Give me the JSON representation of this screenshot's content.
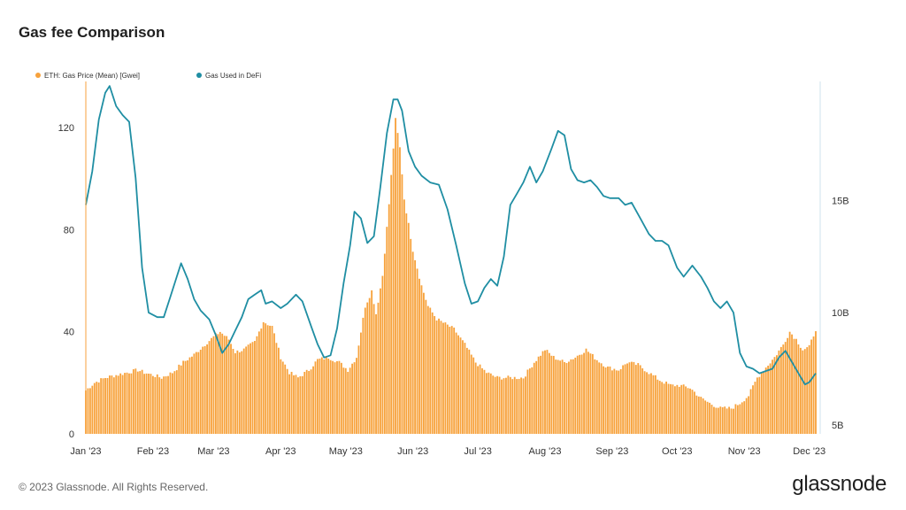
{
  "page": {
    "title": "Gas fee Comparison",
    "copyright": "© 2023 Glassnode. All Rights Reserved.",
    "brand": "glassnode"
  },
  "chart_data": {
    "type": "bar+line",
    "title": "Gas fee Comparison",
    "legend_placement": "top-left",
    "grid": false,
    "x_ticks": [
      "Jan '23",
      "Feb '23",
      "Mar '23",
      "Apr '23",
      "May '23",
      "Jun '23",
      "Jul '23",
      "Aug '23",
      "Sep '23",
      "Oct '23",
      "Nov '23",
      "Dec '23"
    ],
    "x_range": [
      "2023-01-01",
      "2023-12-04"
    ],
    "y_left": {
      "ticks": [
        "0",
        "40",
        "80",
        "120"
      ],
      "range": [
        0,
        138
      ]
    },
    "y_right": {
      "ticks": [
        "5B",
        "10B",
        "15B"
      ],
      "range": [
        4.6,
        20.3
      ],
      "unit": "B"
    },
    "series": [
      {
        "name": "ETH: Gas Price (Mean) [Gwei]",
        "type": "bar",
        "axis": "left",
        "color": "#f7a23c",
        "points": [
          [
            "2023-01-01",
            17
          ],
          [
            "2023-01-05",
            20
          ],
          [
            "2023-01-10",
            22
          ],
          [
            "2023-01-15",
            23
          ],
          [
            "2023-01-20",
            24
          ],
          [
            "2023-01-25",
            25
          ],
          [
            "2023-01-28",
            24
          ],
          [
            "2023-02-01",
            23
          ],
          [
            "2023-02-05",
            22
          ],
          [
            "2023-02-10",
            24
          ],
          [
            "2023-02-15",
            28
          ],
          [
            "2023-02-20",
            31
          ],
          [
            "2023-02-25",
            35
          ],
          [
            "2023-03-01",
            38
          ],
          [
            "2023-03-04",
            40
          ],
          [
            "2023-03-08",
            37
          ],
          [
            "2023-03-11",
            32
          ],
          [
            "2023-03-15",
            33
          ],
          [
            "2023-03-20",
            36
          ],
          [
            "2023-03-24",
            44
          ],
          [
            "2023-03-28",
            42
          ],
          [
            "2023-04-01",
            30
          ],
          [
            "2023-04-05",
            24
          ],
          [
            "2023-04-09",
            22
          ],
          [
            "2023-04-14",
            25
          ],
          [
            "2023-04-18",
            29
          ],
          [
            "2023-04-23",
            30
          ],
          [
            "2023-04-28",
            28
          ],
          [
            "2023-05-02",
            25
          ],
          [
            "2023-05-06",
            30
          ],
          [
            "2023-05-10",
            50
          ],
          [
            "2023-05-13",
            56
          ],
          [
            "2023-05-15",
            47
          ],
          [
            "2023-05-18",
            62
          ],
          [
            "2023-05-21",
            90
          ],
          [
            "2023-05-24",
            123
          ],
          [
            "2023-05-26",
            112
          ],
          [
            "2023-05-28",
            92
          ],
          [
            "2023-06-01",
            72
          ],
          [
            "2023-06-05",
            58
          ],
          [
            "2023-06-08",
            50
          ],
          [
            "2023-06-12",
            45
          ],
          [
            "2023-06-16",
            43
          ],
          [
            "2023-06-20",
            41
          ],
          [
            "2023-06-25",
            35
          ],
          [
            "2023-06-30",
            28
          ],
          [
            "2023-07-05",
            24
          ],
          [
            "2023-07-10",
            22
          ],
          [
            "2023-07-16",
            22
          ],
          [
            "2023-07-22",
            22
          ],
          [
            "2023-07-27",
            28
          ],
          [
            "2023-08-01",
            33
          ],
          [
            "2023-08-05",
            30
          ],
          [
            "2023-08-10",
            28
          ],
          [
            "2023-08-15",
            30
          ],
          [
            "2023-08-20",
            33
          ],
          [
            "2023-08-25",
            29
          ],
          [
            "2023-08-30",
            26
          ],
          [
            "2023-09-04",
            25
          ],
          [
            "2023-09-08",
            28
          ],
          [
            "2023-09-13",
            27
          ],
          [
            "2023-09-18",
            24
          ],
          [
            "2023-09-23",
            21
          ],
          [
            "2023-09-28",
            19
          ],
          [
            "2023-10-02",
            19
          ],
          [
            "2023-10-07",
            18
          ],
          [
            "2023-10-12",
            14
          ],
          [
            "2023-10-16",
            12
          ],
          [
            "2023-10-21",
            10
          ],
          [
            "2023-10-26",
            10
          ],
          [
            "2023-10-30",
            12
          ],
          [
            "2023-11-03",
            15
          ],
          [
            "2023-11-07",
            22
          ],
          [
            "2023-11-11",
            26
          ],
          [
            "2023-11-15",
            30
          ],
          [
            "2023-11-19",
            35
          ],
          [
            "2023-11-22",
            40
          ],
          [
            "2023-11-25",
            37
          ],
          [
            "2023-11-28",
            33
          ],
          [
            "2023-12-01",
            34
          ],
          [
            "2023-12-04",
            41
          ]
        ]
      },
      {
        "name": "Gas Used in DeFi",
        "type": "line",
        "axis": "right",
        "unit": "B",
        "color": "#1f8ea3",
        "points": [
          [
            "2023-01-01",
            14.8
          ],
          [
            "2023-01-04",
            16.3
          ],
          [
            "2023-01-07",
            18.6
          ],
          [
            "2023-01-10",
            19.8
          ],
          [
            "2023-01-12",
            20.1
          ],
          [
            "2023-01-15",
            19.2
          ],
          [
            "2023-01-18",
            18.8
          ],
          [
            "2023-01-21",
            18.5
          ],
          [
            "2023-01-24",
            16
          ],
          [
            "2023-01-27",
            12
          ],
          [
            "2023-01-30",
            10
          ],
          [
            "2023-02-03",
            9.8
          ],
          [
            "2023-02-06",
            9.8
          ],
          [
            "2023-02-09",
            10.7
          ],
          [
            "2023-02-12",
            11.6
          ],
          [
            "2023-02-14",
            12.2
          ],
          [
            "2023-02-17",
            11.5
          ],
          [
            "2023-02-20",
            10.6
          ],
          [
            "2023-02-23",
            10.1
          ],
          [
            "2023-02-27",
            9.7
          ],
          [
            "2023-03-02",
            9
          ],
          [
            "2023-03-05",
            8.2
          ],
          [
            "2023-03-08",
            8.6
          ],
          [
            "2023-03-11",
            9.2
          ],
          [
            "2023-03-14",
            9.8
          ],
          [
            "2023-03-17",
            10.6
          ],
          [
            "2023-03-20",
            10.8
          ],
          [
            "2023-03-23",
            11
          ],
          [
            "2023-03-25",
            10.4
          ],
          [
            "2023-03-28",
            10.5
          ],
          [
            "2023-04-01",
            10.2
          ],
          [
            "2023-04-04",
            10.4
          ],
          [
            "2023-04-08",
            10.8
          ],
          [
            "2023-04-11",
            10.5
          ],
          [
            "2023-04-15",
            9.4
          ],
          [
            "2023-04-18",
            8.6
          ],
          [
            "2023-04-21",
            8
          ],
          [
            "2023-04-24",
            8.1
          ],
          [
            "2023-04-27",
            9.3
          ],
          [
            "2023-04-30",
            11.3
          ],
          [
            "2023-05-03",
            13
          ],
          [
            "2023-05-05",
            14.5
          ],
          [
            "2023-05-08",
            14.2
          ],
          [
            "2023-05-11",
            13.1
          ],
          [
            "2023-05-14",
            13.4
          ],
          [
            "2023-05-17",
            15.6
          ],
          [
            "2023-05-20",
            18
          ],
          [
            "2023-05-23",
            19.5
          ],
          [
            "2023-05-25",
            19.5
          ],
          [
            "2023-05-27",
            19
          ],
          [
            "2023-05-30",
            17.2
          ],
          [
            "2023-06-02",
            16.5
          ],
          [
            "2023-06-05",
            16.1
          ],
          [
            "2023-06-09",
            15.8
          ],
          [
            "2023-06-13",
            15.7
          ],
          [
            "2023-06-17",
            14.6
          ],
          [
            "2023-06-21",
            13
          ],
          [
            "2023-06-25",
            11.3
          ],
          [
            "2023-06-28",
            10.4
          ],
          [
            "2023-07-01",
            10.5
          ],
          [
            "2023-07-04",
            11.1
          ],
          [
            "2023-07-07",
            11.5
          ],
          [
            "2023-07-10",
            11.2
          ],
          [
            "2023-07-13",
            12.5
          ],
          [
            "2023-07-16",
            14.8
          ],
          [
            "2023-07-19",
            15.3
          ],
          [
            "2023-07-22",
            15.8
          ],
          [
            "2023-07-25",
            16.5
          ],
          [
            "2023-07-28",
            15.8
          ],
          [
            "2023-07-31",
            16.3
          ],
          [
            "2023-08-04",
            17.3
          ],
          [
            "2023-08-07",
            18.1
          ],
          [
            "2023-08-10",
            17.9
          ],
          [
            "2023-08-13",
            16.4
          ],
          [
            "2023-08-16",
            15.9
          ],
          [
            "2023-08-19",
            15.8
          ],
          [
            "2023-08-22",
            15.9
          ],
          [
            "2023-08-25",
            15.6
          ],
          [
            "2023-08-28",
            15.2
          ],
          [
            "2023-08-31",
            15.1
          ],
          [
            "2023-09-04",
            15.1
          ],
          [
            "2023-09-07",
            14.8
          ],
          [
            "2023-09-10",
            14.9
          ],
          [
            "2023-09-14",
            14.2
          ],
          [
            "2023-09-18",
            13.5
          ],
          [
            "2023-09-21",
            13.2
          ],
          [
            "2023-09-24",
            13.2
          ],
          [
            "2023-09-27",
            13
          ],
          [
            "2023-10-01",
            12
          ],
          [
            "2023-10-04",
            11.6
          ],
          [
            "2023-10-08",
            12.1
          ],
          [
            "2023-10-12",
            11.6
          ],
          [
            "2023-10-15",
            11.1
          ],
          [
            "2023-10-18",
            10.5
          ],
          [
            "2023-10-21",
            10.2
          ],
          [
            "2023-10-24",
            10.5
          ],
          [
            "2023-10-27",
            10
          ],
          [
            "2023-10-30",
            8.2
          ],
          [
            "2023-11-02",
            7.6
          ],
          [
            "2023-11-05",
            7.5
          ],
          [
            "2023-11-08",
            7.3
          ],
          [
            "2023-11-11",
            7.4
          ],
          [
            "2023-11-14",
            7.5
          ],
          [
            "2023-11-17",
            8
          ],
          [
            "2023-11-20",
            8.3
          ],
          [
            "2023-11-23",
            7.8
          ],
          [
            "2023-11-26",
            7.3
          ],
          [
            "2023-11-29",
            6.8
          ],
          [
            "2023-12-01",
            6.9
          ],
          [
            "2023-12-04",
            7.3
          ]
        ]
      }
    ]
  }
}
